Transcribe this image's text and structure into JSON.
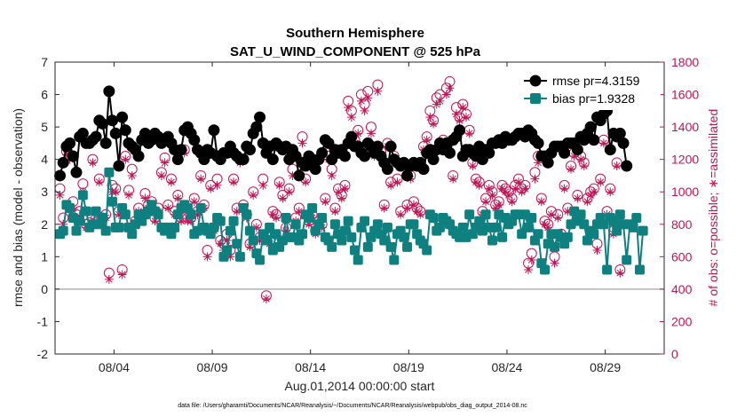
{
  "chart_data": {
    "type": "line",
    "title": "Southern Hemisphere",
    "subtitle": "SAT_U_WIND_COMPONENT @ 525 hPa",
    "xlabel": "Aug.01,2014 00:00:00 start",
    "ylabel_left": "rmse and bias (model - observation)",
    "ylabel_right": "# of obs: o=possible; ∗=assimilated",
    "footnote": "data file: /Users/gharamti/Documents/NCAR/Reanalysis/~/Documents/NCAR/Reanalysis/webpub/obs_diag_output_2014-08.nc",
    "x_ticks": [
      {
        "label": "08/04",
        "day": 4
      },
      {
        "label": "08/09",
        "day": 9
      },
      {
        "label": "08/14",
        "day": 14
      },
      {
        "label": "08/19",
        "day": 19
      },
      {
        "label": "08/24",
        "day": 24
      },
      {
        "label": "08/29",
        "day": 29
      }
    ],
    "xlim": [
      1,
      32
    ],
    "ylim_left": [
      -2,
      7
    ],
    "yticks_left": [
      "-2",
      "-1",
      "0",
      "1",
      "2",
      "3",
      "4",
      "5",
      "6",
      "7"
    ],
    "ylim_right": [
      0,
      1800
    ],
    "yticks_right": [
      "0",
      "200",
      "400",
      "600",
      "800",
      "1000",
      "1200",
      "1400",
      "1600",
      "1800"
    ],
    "grid": false,
    "legend_position": "top-right",
    "colors": {
      "rmse": "#000000",
      "bias": "#0e8080",
      "obs": "#c01555",
      "zero_line": "#b3b3b3"
    },
    "series": [
      {
        "name": "rmse pr=4.3159",
        "axis": "left",
        "values": [
          3.5,
          3.9,
          4.4,
          4.5,
          4.1,
          3.6,
          4.7,
          4.8,
          4.5,
          4.5,
          4.6,
          4.7,
          5.2,
          5.1,
          4.5,
          6.1,
          5.2,
          4.8,
          3.8,
          5.3,
          4.9,
          4.5,
          4.4,
          4.3,
          4.1,
          4.6,
          4.8,
          4.5,
          4.6,
          4.8,
          4.7,
          4.5,
          4.6,
          4.7,
          4.5,
          4.3,
          4.0,
          4.3,
          4.9,
          5.0,
          4.8,
          4.6,
          4.3,
          4.2,
          4.0,
          4.3,
          4.2,
          4.9,
          4.1,
          4.0,
          4.2,
          4.2,
          4.4,
          4.2,
          4.1,
          4.0,
          4.0,
          4.4,
          4.3,
          4.8,
          5.0,
          5.3,
          4.5,
          4.2,
          4.4,
          4.0,
          4.5,
          4.4,
          4.3,
          4.4,
          4.0,
          4.3,
          4.1,
          3.5,
          3.9,
          3.8,
          4.1,
          4.0,
          3.7,
          4.0,
          4.2,
          4.6,
          4.5,
          4.0,
          4.3,
          4.2,
          4.3,
          4.1,
          4.5,
          4.7,
          4.4,
          4.4,
          4.2,
          4.1,
          4.5,
          4.4,
          4.2,
          4.4,
          4.1,
          3.9,
          3.7,
          4.4,
          4.0,
          3.9,
          3.8,
          3.9,
          3.5,
          3.8,
          3.9,
          3.8,
          3.9,
          3.7,
          4.2,
          4.3,
          4.0,
          4.3,
          4.5,
          4.3,
          4.5,
          4.2,
          4.6,
          4.7,
          4.9,
          4.1,
          4.3,
          4.3,
          4.2,
          4.1,
          4.4,
          4.0,
          4.3,
          4.2,
          4.5,
          4.5,
          4.6,
          4.5,
          4.7,
          4.6,
          4.6,
          4.7,
          4.8,
          4.8,
          4.7,
          4.9,
          4.8,
          4.6,
          4.5,
          4.1,
          4.1,
          3.9,
          4.2,
          4.4,
          4.4,
          4.4,
          4.2,
          4.5,
          4.5,
          4.5,
          4.3,
          4.7,
          4.6,
          4.8,
          5.0,
          4.6,
          5.3,
          5.2,
          5.4,
          5.5,
          4.3,
          4.8,
          4.7,
          4.8,
          4.5,
          3.8
        ],
        "x_start": 1.25,
        "x_step": 0.1667
      },
      {
        "name": "bias pr=1.9328",
        "axis": "left",
        "values": [
          1.7,
          1.8,
          2.6,
          2.5,
          2.2,
          1.8,
          2.1,
          2.9,
          2.4,
          1.9,
          2.0,
          2.4,
          2.0,
          2.2,
          1.8,
          3.6,
          2.7,
          1.9,
          1.9,
          2.5,
          2.3,
          1.9,
          1.7,
          2.0,
          2.3,
          2.1,
          2.3,
          2.4,
          2.6,
          2.4,
          2.3,
          1.9,
          1.8,
          1.9,
          1.7,
          1.9,
          2.3,
          2.5,
          2.6,
          2.5,
          2.3,
          1.7,
          1.8,
          2.5,
          1.9,
          1.8,
          1.7,
          1.9,
          2.2,
          2.1,
          1.0,
          1.2,
          1.8,
          2.1,
          1.4,
          1.0,
          2.5,
          2.3,
          1.8,
          1.5,
          1.1,
          0.9,
          1.7,
          1.5,
          1.9,
          1.2,
          1.7,
          1.3,
          1.5,
          2.2,
          1.6,
          1.6,
          2.0,
          1.5,
          1.7,
          2.3,
          2.2,
          2.5,
          1.8,
          2.0,
          2.2,
          1.6,
          1.5,
          1.3,
          2.0,
          1.7,
          1.5,
          1.8,
          2.1,
          1.6,
          1.2,
          0.9,
          1.9,
          2.1,
          1.3,
          1.6,
          1.8,
          2.0,
          1.7,
          1.5,
          1.9,
          1.3,
          0.9,
          1.7,
          1.8,
          1.6,
          1.3,
          2.0,
          2.0,
          1.7,
          1.5,
          1.4,
          1.2,
          2.3,
          2.2,
          1.8,
          1.9,
          2.2,
          2.1,
          2.0,
          1.8,
          1.7,
          1.6,
          1.9,
          1.6,
          2.3,
          1.7,
          1.9,
          2.1,
          1.8,
          2.3,
          1.9,
          1.5,
          1.9,
          2.3,
          1.6,
          2.2,
          2.0,
          2.1,
          2.3,
          2.3,
          1.7,
          2.3,
          1.9,
          2.2,
          1.5,
          1.7,
          0.8,
          0.6,
          1.4,
          1.7,
          1.3,
          1.7,
          1.6,
          1.4,
          1.6,
          2.0,
          2.4,
          2.1,
          2.3,
          2.0,
          1.5,
          1.8,
          1.7,
          2.0,
          2.2,
          2.0,
          0.6,
          2.2,
          2.1,
          1.8,
          2.3,
          2.0,
          0.9,
          2.0,
          1.9,
          2.2,
          0.6,
          1.8
        ],
        "x_start": 1.25,
        "x_step": 0.1667
      },
      {
        "name": "obs possible",
        "axis": "right",
        "marker": "circle",
        "values": [
          1020,
          840,
          1250,
          1220,
          940,
          860,
          880,
          1050,
          800,
          810,
          1200,
          840,
          1080,
          840,
          860,
          500,
          1040,
          1020,
          880,
          520,
          1220,
          1010,
          1140,
          820,
          900,
          860,
          990,
          920,
          940,
          840,
          900,
          1120,
          1210,
          920,
          1080,
          880,
          980,
          840,
          1260,
          840,
          840,
          960,
          880,
          1100,
          920,
          640,
          1040,
          780,
          1080,
          700,
          680,
          740,
          640,
          1080,
          900,
          1200,
          920,
          860,
          680,
          1000,
          800,
          720,
          1080,
          360,
          700,
          880,
          860,
          1060,
          980,
          780,
          1020,
          1140,
          840,
          900,
          1340,
          1080,
          820,
          860,
          760,
          820,
          800,
          960,
          1220,
          1140,
          900,
          1020,
          980,
          1040,
          1560,
          1500,
          1320,
          1380,
          1600,
          1540,
          1620,
          1400,
          1240,
          1660,
          1250,
          920,
          1300,
          1060,
          1220,
          1080,
          880,
          1180,
          920,
          1100,
          940,
          900,
          880,
          1280,
          1340,
          1500,
          1440,
          1580,
          1600,
          1320,
          1640,
          1680,
          1100,
          1520,
          1460,
          1540,
          1480,
          1380,
          1180,
          1080,
          1060,
          880,
          960,
          1040,
          1000,
          920,
          940,
          1040,
          1020,
          1000,
          960,
          1040,
          1080,
          1020,
          1040,
          560,
          620,
          1120,
          1220,
          960,
          820,
          800,
          880,
          600,
          860,
          740,
          1040,
          900,
          1160,
          1240,
          980,
          1220,
          1180,
          960,
          1000,
          1020,
          680,
          1080,
          1320,
          880,
          1020,
          760,
          1180,
          520
        ],
        "x_start": 1.25,
        "x_step": 0.1667
      },
      {
        "name": "obs assimilated",
        "axis": "right",
        "marker": "asterisk",
        "values": [
          980,
          800,
          1230,
          1200,
          900,
          830,
          850,
          1000,
          780,
          790,
          1180,
          820,
          1060,
          820,
          840,
          460,
          1000,
          1000,
          860,
          490,
          1200,
          980,
          1100,
          800,
          880,
          840,
          960,
          900,
          920,
          820,
          880,
          1100,
          1180,
          900,
          1060,
          860,
          960,
          820,
          1240,
          820,
          820,
          940,
          860,
          1080,
          900,
          600,
          1020,
          760,
          1040,
          680,
          640,
          700,
          600,
          1060,
          880,
          1180,
          900,
          840,
          660,
          980,
          780,
          700,
          1040,
          340,
          680,
          860,
          840,
          1040,
          960,
          760,
          1000,
          1100,
          820,
          880,
          1300,
          1060,
          800,
          840,
          740,
          800,
          780,
          940,
          1200,
          1100,
          880,
          1000,
          960,
          1020,
          1520,
          1460,
          1300,
          1360,
          1560,
          1500,
          1580,
          1360,
          1220,
          1620,
          1230,
          900,
          1280,
          1040,
          1200,
          1060,
          860,
          1160,
          900,
          1080,
          920,
          880,
          860,
          1260,
          1320,
          1460,
          1420,
          1540,
          1560,
          1300,
          1600,
          1640,
          1080,
          1480,
          1440,
          1520,
          1460,
          1360,
          1160,
          1060,
          1040,
          860,
          940,
          1020,
          980,
          900,
          920,
          1020,
          1000,
          980,
          940,
          1020,
          1060,
          1000,
          1020,
          520,
          580,
          1080,
          1180,
          940,
          800,
          780,
          860,
          560,
          840,
          720,
          1020,
          880,
          1140,
          1220,
          960,
          1200,
          1160,
          940,
          980,
          1000,
          640,
          1060,
          1300,
          860,
          1000,
          740,
          1160,
          500
        ],
        "x_start": 1.25,
        "x_step": 0.1667
      }
    ]
  }
}
